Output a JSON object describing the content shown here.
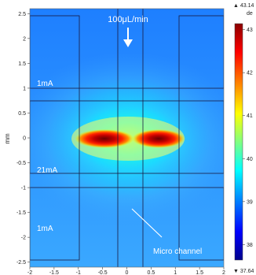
{
  "chart_data": {
    "type": "heatmap",
    "ylabel": "mm",
    "xlim": [
      -2,
      2
    ],
    "ylim": [
      -2.6,
      2.6
    ],
    "x_ticks": [
      "-2",
      "-1.5",
      "-1",
      "-0.5",
      "0",
      "0.5",
      "1",
      "1.5",
      "2"
    ],
    "y_ticks": [
      "2.5",
      "2",
      "1.5",
      "1",
      "0.5",
      "0",
      "-0.5",
      "-1",
      "-1.5",
      "-2",
      "-2.5"
    ],
    "colorbar": {
      "unit": "de",
      "max_marker": "▲ 43.14",
      "min_marker": "▼ 37.64",
      "ticks": [
        "43",
        "42",
        "41",
        "40",
        "39",
        "38"
      ],
      "range": [
        37.64,
        43.14
      ],
      "colors": [
        "#00008b",
        "#0000ff",
        "#0080ff",
        "#00ffff",
        "#80ff80",
        "#ffff00",
        "#ff8000",
        "#ff0000",
        "#8b0000"
      ]
    },
    "hotspots": [
      {
        "x": -0.55,
        "y": 0.0,
        "value": 43.14
      },
      {
        "x": 0.6,
        "y": 0.0,
        "value": 43.14
      }
    ],
    "annotations": {
      "flow_label": "100μL/min",
      "top_current": "1mA",
      "middle_current": "21mA",
      "bottom_current": "1mA",
      "channel_label": "Micro channel"
    },
    "colors": {
      "background_field": "#3aa0ff",
      "frame_lines": "#1a1a40",
      "annotation_text": "#ffffff"
    }
  }
}
